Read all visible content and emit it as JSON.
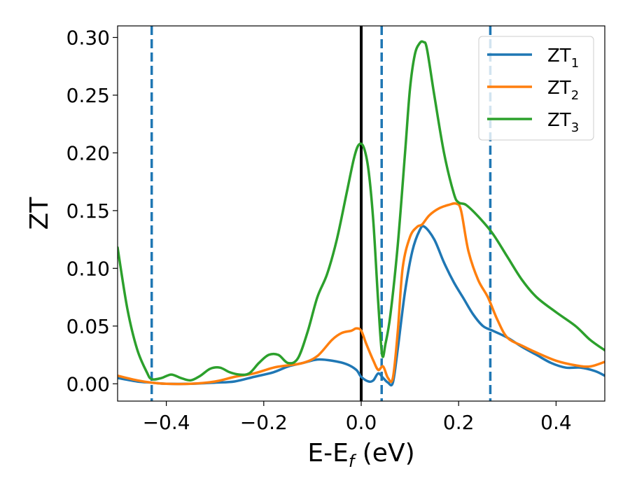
{
  "chart_data": {
    "type": "line",
    "xlabel": "E-E",
    "xlabel_sub": "f",
    "xlabel_units": " (eV)",
    "ylabel": "ZT",
    "xlim": [
      -0.5,
      0.5
    ],
    "ylim": [
      -0.015,
      0.31
    ],
    "x_ticks": [
      -0.4,
      -0.2,
      0.0,
      0.2,
      0.4
    ],
    "x_tick_labels": [
      "−0.4",
      "−0.2",
      "0.0",
      "0.2",
      "0.4"
    ],
    "y_ticks": [
      0.0,
      0.05,
      0.1,
      0.15,
      0.2,
      0.25,
      0.3
    ],
    "y_tick_labels": [
      "0.00",
      "0.05",
      "0.10",
      "0.15",
      "0.20",
      "0.25",
      "0.30"
    ],
    "grid": false,
    "legend_position": "top-right",
    "vertical_lines": [
      {
        "x": -0.43,
        "style": "dashed",
        "color": "#1f77b4"
      },
      {
        "x": 0.0,
        "style": "solid",
        "color": "#000000"
      },
      {
        "x": 0.042,
        "style": "dashed",
        "color": "#1f77b4"
      },
      {
        "x": 0.265,
        "style": "dashed",
        "color": "#1f77b4"
      }
    ],
    "series": [
      {
        "name": "ZT",
        "subscript": "1",
        "color": "#1f77b4",
        "points": [
          [
            -0.5,
            0.005
          ],
          [
            -0.46,
            0.002
          ],
          [
            -0.43,
            0.001
          ],
          [
            -0.4,
            0.0
          ],
          [
            -0.35,
            0.0
          ],
          [
            -0.3,
            0.001
          ],
          [
            -0.26,
            0.002
          ],
          [
            -0.22,
            0.006
          ],
          [
            -0.18,
            0.01
          ],
          [
            -0.15,
            0.015
          ],
          [
            -0.12,
            0.018
          ],
          [
            -0.09,
            0.021
          ],
          [
            -0.06,
            0.02
          ],
          [
            -0.03,
            0.017
          ],
          [
            -0.01,
            0.012
          ],
          [
            0.0,
            0.006
          ],
          [
            0.015,
            0.002
          ],
          [
            0.025,
            0.003
          ],
          [
            0.035,
            0.009
          ],
          [
            0.045,
            0.005
          ],
          [
            0.055,
            0.001
          ],
          [
            0.065,
            0.001
          ],
          [
            0.075,
            0.03
          ],
          [
            0.09,
            0.08
          ],
          [
            0.105,
            0.115
          ],
          [
            0.12,
            0.133
          ],
          [
            0.13,
            0.136
          ],
          [
            0.15,
            0.125
          ],
          [
            0.17,
            0.105
          ],
          [
            0.19,
            0.088
          ],
          [
            0.21,
            0.074
          ],
          [
            0.23,
            0.06
          ],
          [
            0.25,
            0.05
          ],
          [
            0.27,
            0.046
          ],
          [
            0.3,
            0.04
          ],
          [
            0.33,
            0.032
          ],
          [
            0.36,
            0.025
          ],
          [
            0.39,
            0.018
          ],
          [
            0.42,
            0.014
          ],
          [
            0.45,
            0.014
          ],
          [
            0.48,
            0.011
          ],
          [
            0.5,
            0.007
          ]
        ]
      },
      {
        "name": "ZT",
        "subscript": "2",
        "color": "#ff7f0e",
        "points": [
          [
            -0.5,
            0.007
          ],
          [
            -0.46,
            0.003
          ],
          [
            -0.43,
            0.001
          ],
          [
            -0.4,
            0.0
          ],
          [
            -0.35,
            0.0
          ],
          [
            -0.3,
            0.002
          ],
          [
            -0.26,
            0.006
          ],
          [
            -0.22,
            0.009
          ],
          [
            -0.18,
            0.014
          ],
          [
            -0.15,
            0.016
          ],
          [
            -0.12,
            0.018
          ],
          [
            -0.09,
            0.024
          ],
          [
            -0.06,
            0.038
          ],
          [
            -0.04,
            0.044
          ],
          [
            -0.02,
            0.046
          ],
          [
            -0.01,
            0.048
          ],
          [
            0.0,
            0.046
          ],
          [
            0.01,
            0.035
          ],
          [
            0.025,
            0.02
          ],
          [
            0.035,
            0.012
          ],
          [
            0.045,
            0.015
          ],
          [
            0.055,
            0.005
          ],
          [
            0.065,
            0.005
          ],
          [
            0.075,
            0.045
          ],
          [
            0.085,
            0.1
          ],
          [
            0.1,
            0.127
          ],
          [
            0.115,
            0.136
          ],
          [
            0.125,
            0.138
          ],
          [
            0.14,
            0.146
          ],
          [
            0.16,
            0.152
          ],
          [
            0.18,
            0.155
          ],
          [
            0.195,
            0.156
          ],
          [
            0.205,
            0.15
          ],
          [
            0.22,
            0.115
          ],
          [
            0.24,
            0.09
          ],
          [
            0.26,
            0.075
          ],
          [
            0.28,
            0.055
          ],
          [
            0.3,
            0.04
          ],
          [
            0.33,
            0.033
          ],
          [
            0.36,
            0.027
          ],
          [
            0.4,
            0.02
          ],
          [
            0.44,
            0.016
          ],
          [
            0.47,
            0.015
          ],
          [
            0.5,
            0.019
          ]
        ]
      },
      {
        "name": "ZT",
        "subscript": "3",
        "color": "#2ca02c",
        "points": [
          [
            -0.5,
            0.118
          ],
          [
            -0.48,
            0.065
          ],
          [
            -0.46,
            0.03
          ],
          [
            -0.44,
            0.01
          ],
          [
            -0.43,
            0.004
          ],
          [
            -0.41,
            0.005
          ],
          [
            -0.39,
            0.008
          ],
          [
            -0.37,
            0.005
          ],
          [
            -0.35,
            0.003
          ],
          [
            -0.33,
            0.007
          ],
          [
            -0.31,
            0.013
          ],
          [
            -0.29,
            0.014
          ],
          [
            -0.27,
            0.01
          ],
          [
            -0.25,
            0.008
          ],
          [
            -0.23,
            0.009
          ],
          [
            -0.21,
            0.018
          ],
          [
            -0.19,
            0.025
          ],
          [
            -0.17,
            0.025
          ],
          [
            -0.15,
            0.018
          ],
          [
            -0.13,
            0.022
          ],
          [
            -0.11,
            0.045
          ],
          [
            -0.09,
            0.075
          ],
          [
            -0.07,
            0.095
          ],
          [
            -0.05,
            0.125
          ],
          [
            -0.03,
            0.165
          ],
          [
            -0.015,
            0.195
          ],
          [
            -0.005,
            0.207
          ],
          [
            0.005,
            0.205
          ],
          [
            0.015,
            0.185
          ],
          [
            0.025,
            0.14
          ],
          [
            0.035,
            0.07
          ],
          [
            0.043,
            0.025
          ],
          [
            0.05,
            0.035
          ],
          [
            0.06,
            0.06
          ],
          [
            0.075,
            0.12
          ],
          [
            0.09,
            0.2
          ],
          [
            0.1,
            0.255
          ],
          [
            0.11,
            0.285
          ],
          [
            0.12,
            0.295
          ],
          [
            0.128,
            0.296
          ],
          [
            0.135,
            0.29
          ],
          [
            0.15,
            0.25
          ],
          [
            0.17,
            0.2
          ],
          [
            0.19,
            0.165
          ],
          [
            0.2,
            0.157
          ],
          [
            0.215,
            0.155
          ],
          [
            0.24,
            0.145
          ],
          [
            0.27,
            0.13
          ],
          [
            0.3,
            0.11
          ],
          [
            0.33,
            0.09
          ],
          [
            0.36,
            0.075
          ],
          [
            0.4,
            0.062
          ],
          [
            0.44,
            0.05
          ],
          [
            0.47,
            0.038
          ],
          [
            0.5,
            0.029
          ]
        ]
      }
    ]
  }
}
